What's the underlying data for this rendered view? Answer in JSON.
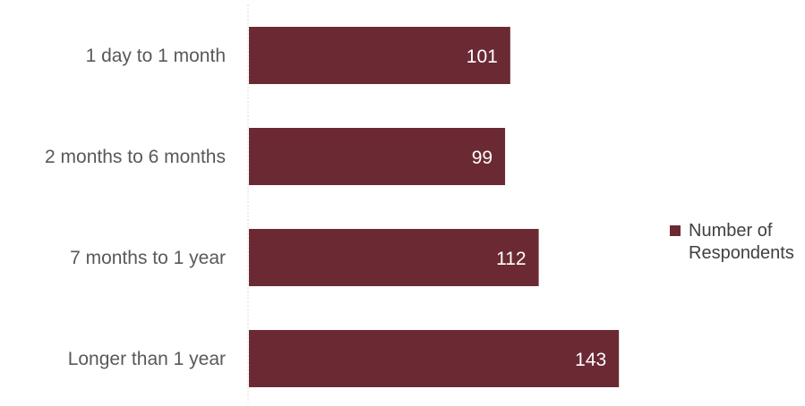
{
  "chart_data": {
    "type": "bar",
    "orientation": "horizontal",
    "categories": [
      "1 day to 1 month",
      "2 months to 6 months",
      "7 months to 1 year",
      "Longer than 1 year"
    ],
    "series": [
      {
        "name": "Number of Respondents",
        "values": [
          101,
          99,
          112,
          143
        ],
        "color": "#6b2a33"
      }
    ],
    "xlim": [
      0,
      190
    ],
    "grid": false,
    "data_labels": true,
    "legend_position": "right"
  }
}
